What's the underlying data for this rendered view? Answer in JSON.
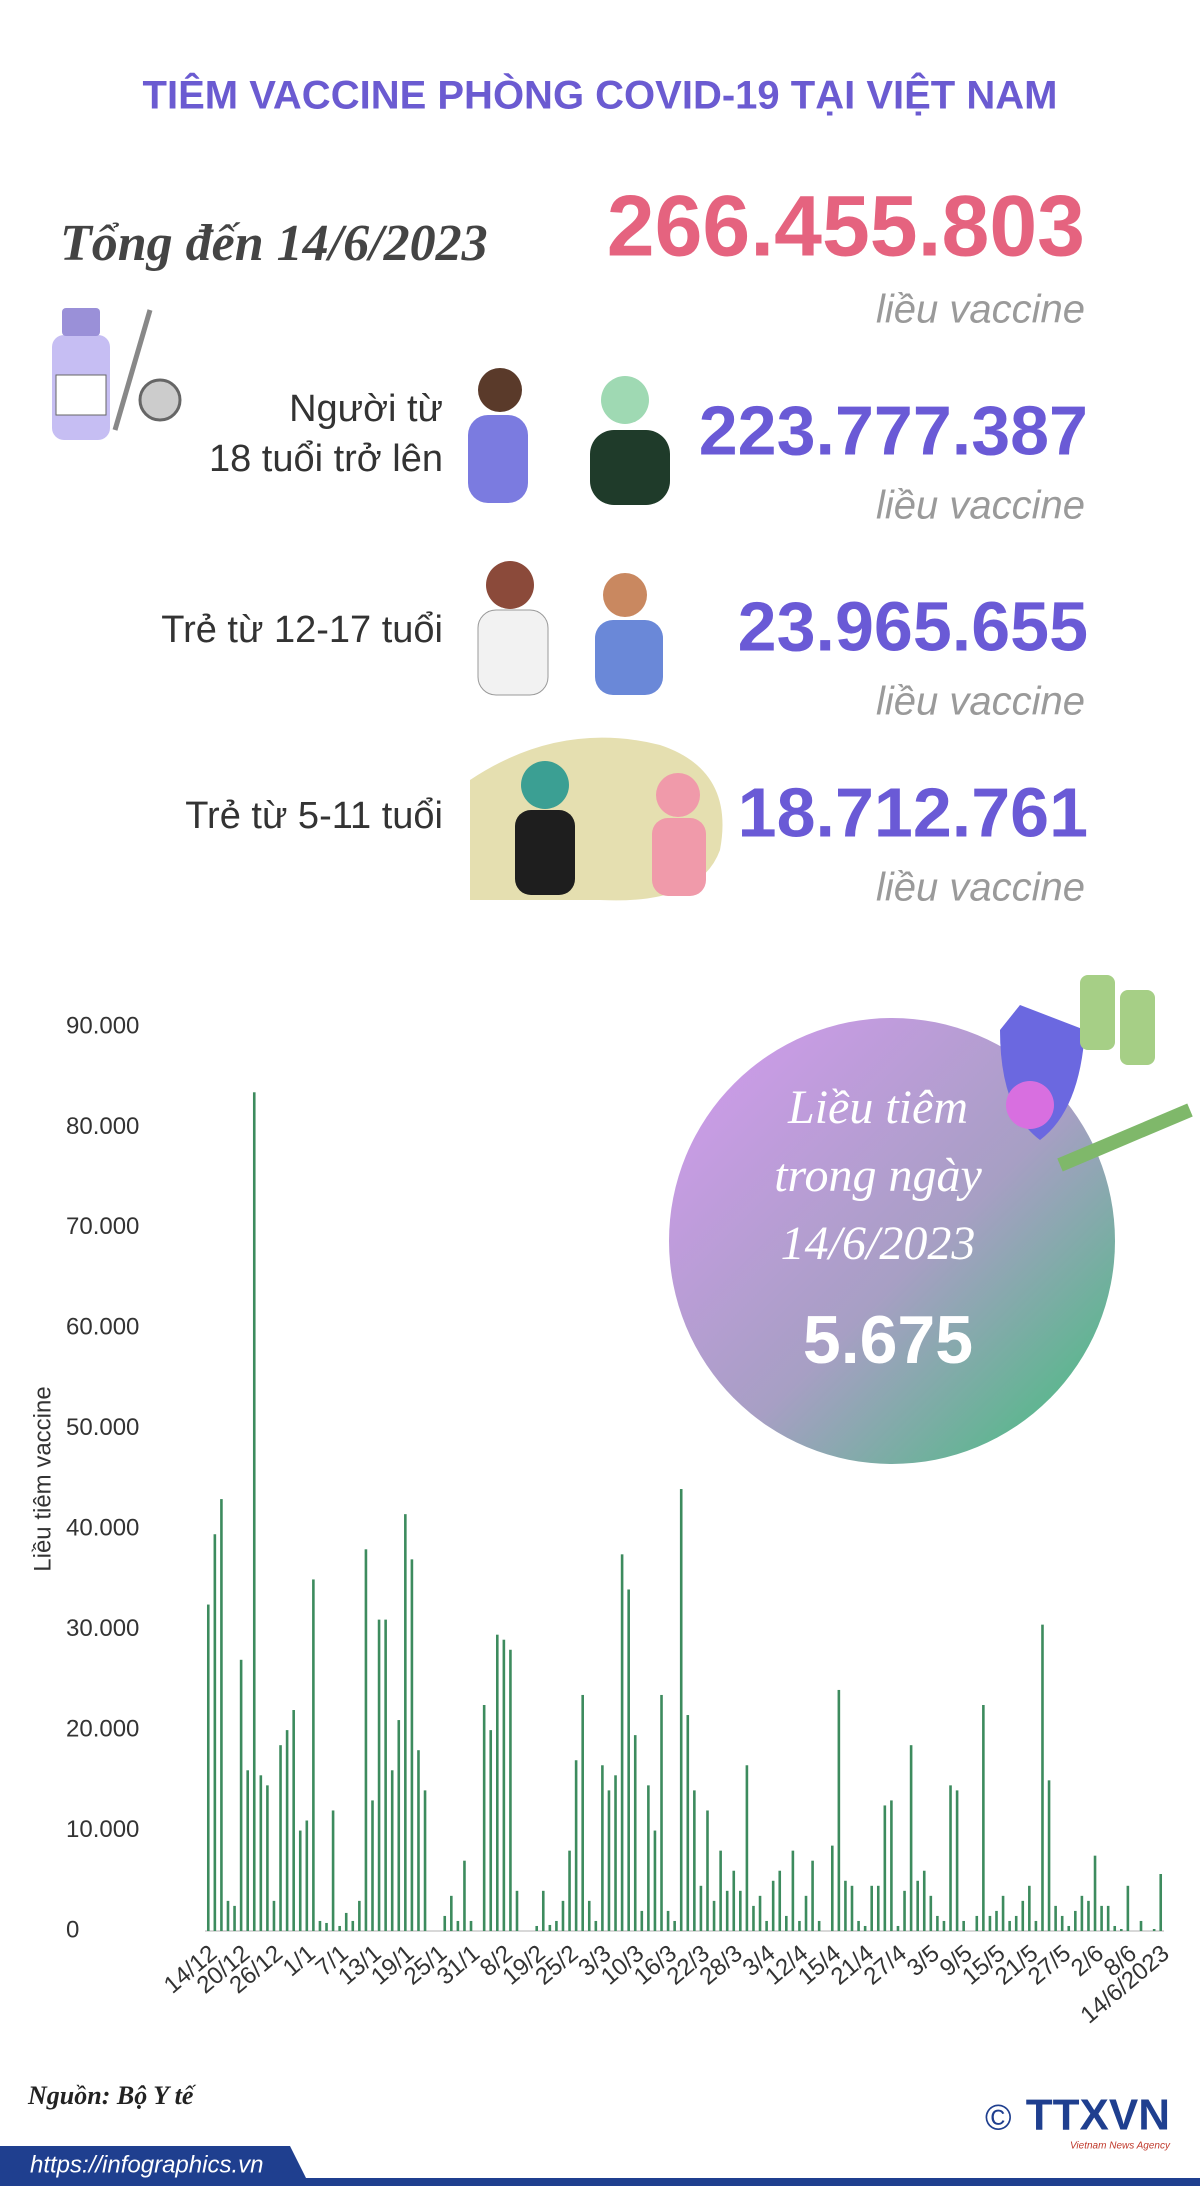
{
  "title": "TIÊM VACCINE PHÒNG COVID-19 TẠI VIỆT NAM",
  "total": {
    "label": "Tổng đến 14/6/2023",
    "value": "266.455.803",
    "unit": "liều vaccine"
  },
  "groups": [
    {
      "label_lines": [
        "Người từ",
        "18 tuổi trở lên"
      ],
      "value": "223.777.387",
      "unit": "liều vaccine"
    },
    {
      "label_lines": [
        "Trẻ từ 12-17 tuổi"
      ],
      "value": "23.965.655",
      "unit": "liều vaccine"
    },
    {
      "label_lines": [
        "Trẻ từ 5-11 tuổi"
      ],
      "value": "18.712.761",
      "unit": "liều vaccine"
    }
  ],
  "daily": {
    "lines": [
      "Liều tiêm",
      "trong ngày",
      "14/6/2023"
    ],
    "value": "5.675"
  },
  "source": "Nguồn: Bộ Y tế",
  "url": "https://infographics.vn",
  "logo": "TTXVN",
  "logo_sub": "Vietnam News Agency",
  "chart_data": {
    "type": "bar",
    "y_label": "Liều tiêm vaccine",
    "color": "#3d8b5e",
    "ylim": [
      0,
      90000
    ],
    "yticks": [
      0,
      {
        "value": 10000,
        "label": "10.000"
      },
      {
        "value": 20000,
        "label": "20.000"
      },
      {
        "value": 30000,
        "label": "30.000"
      },
      {
        "value": 40000,
        "label": "40.000"
      },
      {
        "value": 50000,
        "label": "50.000"
      },
      {
        "value": 60000,
        "label": "60.000"
      },
      {
        "value": 70000,
        "label": "70.000"
      },
      {
        "value": 80000,
        "label": "80.000"
      },
      {
        "value": 90000,
        "label": "90.000"
      }
    ],
    "categories": [
      "14/12",
      null,
      null,
      null,
      null,
      "20/12",
      null,
      null,
      null,
      null,
      "26/12",
      null,
      null,
      null,
      null,
      "1/1",
      null,
      null,
      null,
      null,
      "7/1",
      null,
      null,
      null,
      null,
      "13/1",
      null,
      null,
      null,
      null,
      "19/1",
      null,
      null,
      null,
      null,
      "25/1",
      null,
      null,
      null,
      null,
      "31/1",
      null,
      null,
      null,
      null,
      "8/2",
      null,
      null,
      null,
      null,
      "19/2",
      null,
      null,
      null,
      null,
      "25/2",
      null,
      null,
      null,
      null,
      "3/3",
      null,
      null,
      null,
      null,
      "10/3",
      null,
      null,
      null,
      null,
      "16/3",
      null,
      null,
      null,
      null,
      "22/3",
      null,
      null,
      null,
      null,
      "28/3",
      null,
      null,
      null,
      null,
      "3/4",
      null,
      null,
      null,
      null,
      "12/4",
      null,
      null,
      null,
      null,
      "15/4",
      null,
      null,
      null,
      null,
      "21/4",
      null,
      null,
      null,
      null,
      "27/4",
      null,
      null,
      null,
      null,
      "3/5",
      null,
      null,
      null,
      null,
      "9/5",
      null,
      null,
      null,
      null,
      "15/5",
      null,
      null,
      null,
      null,
      "21/5",
      null,
      null,
      null,
      null,
      "27/5",
      null,
      null,
      null,
      null,
      "2/6",
      null,
      null,
      null,
      null,
      "8/6",
      null,
      null,
      null,
      null,
      "14/6/2023"
    ],
    "values": [
      32500,
      39500,
      43000,
      3000,
      2500,
      27000,
      16000,
      83500,
      15500,
      14500,
      3000,
      18500,
      20000,
      22000,
      10000,
      11000,
      35000,
      1000,
      800,
      12000,
      500,
      1800,
      1000,
      3000,
      38000,
      13000,
      31000,
      31000,
      16000,
      21000,
      41500,
      37000,
      18000,
      14000,
      0,
      0,
      1500,
      3500,
      1000,
      7000,
      1000,
      0,
      22500,
      20000,
      29500,
      29000,
      28000,
      4000,
      0,
      0,
      500,
      4000,
      600,
      1000,
      3000,
      8000,
      17000,
      23500,
      3000,
      1000,
      16500,
      14000,
      15500,
      37500,
      34000,
      19500,
      2000,
      14500,
      10000,
      23500,
      2000,
      1000,
      44000,
      21500,
      14000,
      4500,
      12000,
      3000,
      8000,
      4000,
      6000,
      4000,
      16500,
      2500,
      3500,
      1000,
      5000,
      6000,
      1500,
      8000,
      1000,
      3500,
      7000,
      1000,
      0,
      8500,
      24000,
      5000,
      4500,
      1000,
      500,
      4500,
      4500,
      12500,
      13000,
      500,
      4000,
      18500,
      5000,
      6000,
      3500,
      1500,
      1000,
      14500,
      14000,
      1000,
      0,
      1500,
      22500,
      1500,
      2000,
      3500,
      1000,
      1500,
      3000,
      4500,
      1000,
      30500,
      15000,
      2500,
      1500,
      500,
      2000,
      3500,
      3000,
      7500,
      2500,
      2500,
      500,
      200,
      4500,
      0,
      1000,
      0,
      200,
      5675
    ]
  }
}
